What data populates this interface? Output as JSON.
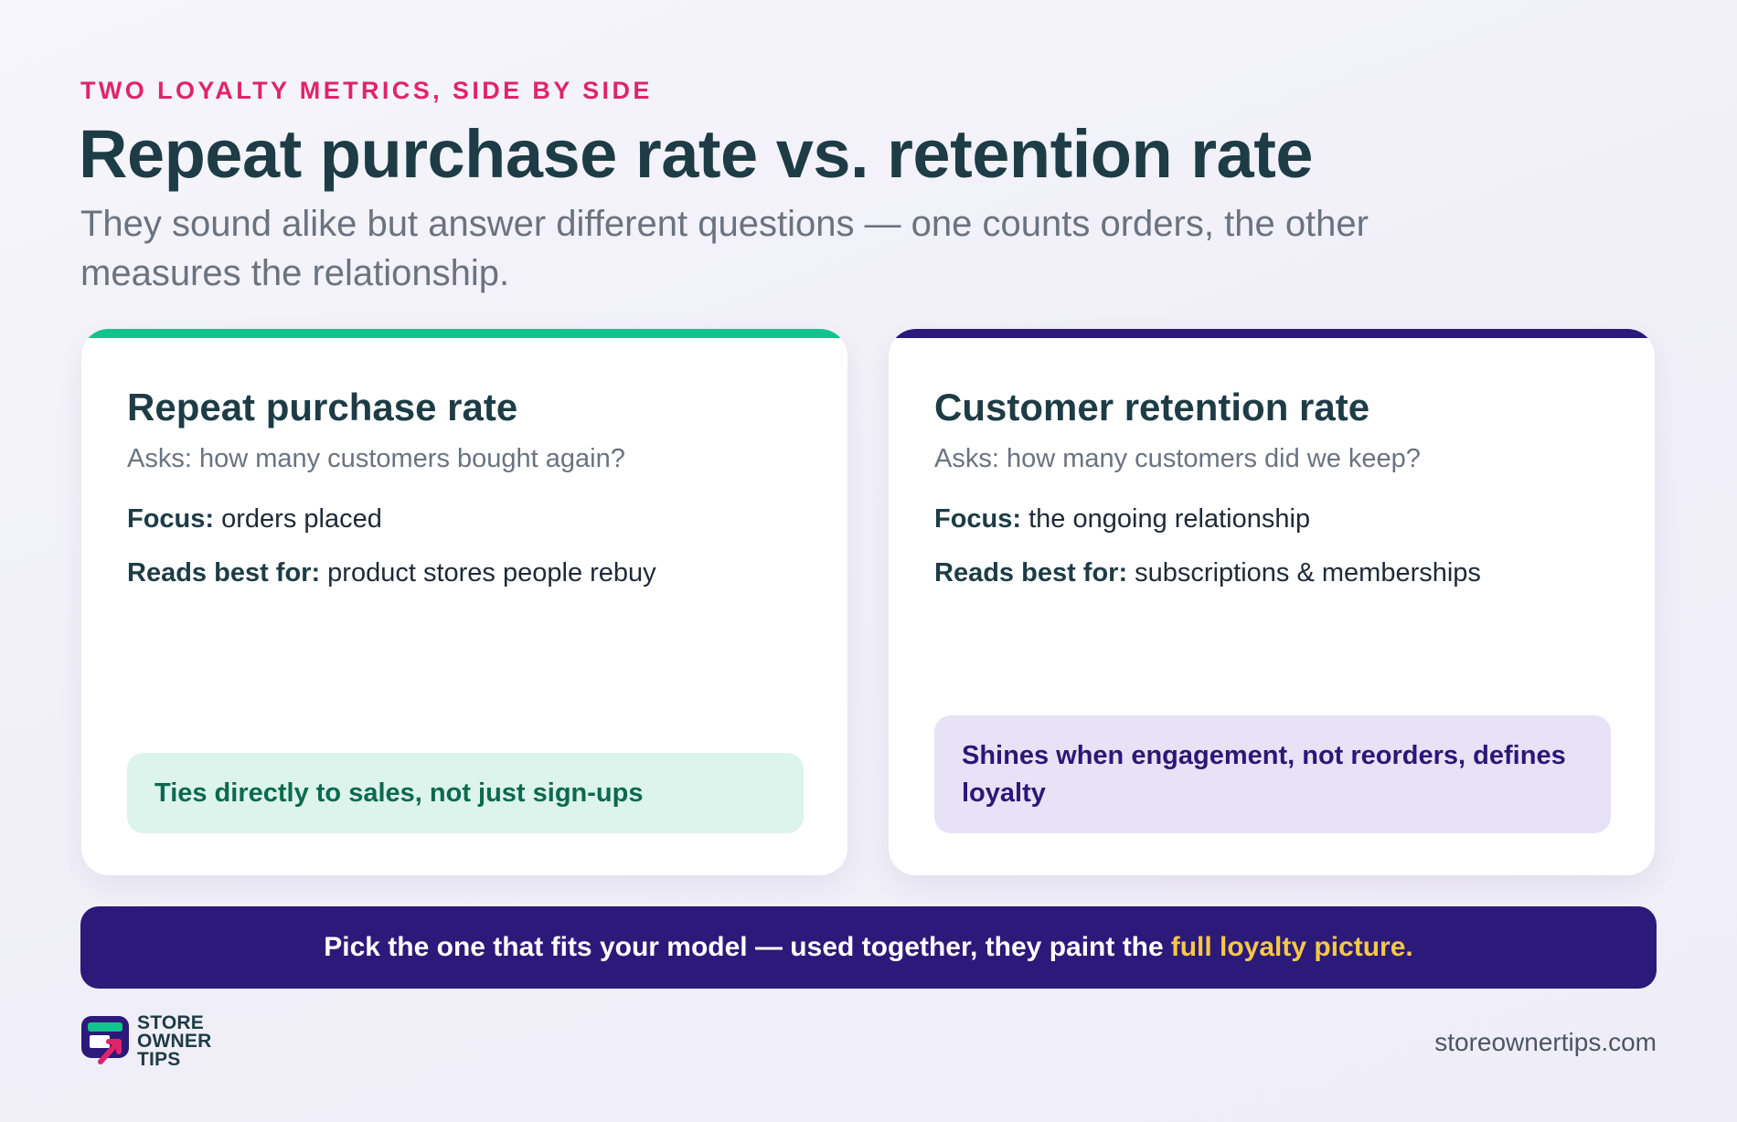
{
  "header": {
    "eyebrow": "TWO LOYALTY METRICS, SIDE BY SIDE",
    "title": "Repeat purchase rate vs. retention rate",
    "subtitle": "They sound alike but answer different questions — one counts orders, the other measures the relationship."
  },
  "cards": [
    {
      "accent": "#10c48c",
      "title": "Repeat purchase rate",
      "asks": "Asks: how many customers bought again?",
      "focus_label": "Focus:",
      "focus_value": "orders placed",
      "reads_label": "Reads best for:",
      "reads_value": "product stores people rebuy",
      "callout": "Ties directly to sales, not just sign-ups",
      "callout_bg": "#dcf4ec",
      "callout_color": "#0c6a4c"
    },
    {
      "accent": "#2b1a7a",
      "title": "Customer retention rate",
      "asks": "Asks: how many customers did we keep?",
      "focus_label": "Focus:",
      "focus_value": "the ongoing relationship",
      "reads_label": "Reads best for:",
      "reads_value": "subscriptions & memberships",
      "callout": "Shines when engagement, not reorders, defines loyalty",
      "callout_bg": "#e7e2f6",
      "callout_color": "#2a1877"
    }
  ],
  "banner": {
    "text": "Pick the one that fits your model — used together, they paint the",
    "highlight": "full loyalty picture.",
    "bg": "#2b1a7a",
    "highlight_color": "#f6c744"
  },
  "footer": {
    "logo_lines": [
      "STORE",
      "OWNER",
      "TIPS"
    ],
    "logo_icon": "storefront-arrow-icon",
    "site": "storeownertips.com"
  },
  "colors": {
    "eyebrow": "#e0246a",
    "title": "#1d3c45",
    "subtitle": "#6b7280"
  }
}
